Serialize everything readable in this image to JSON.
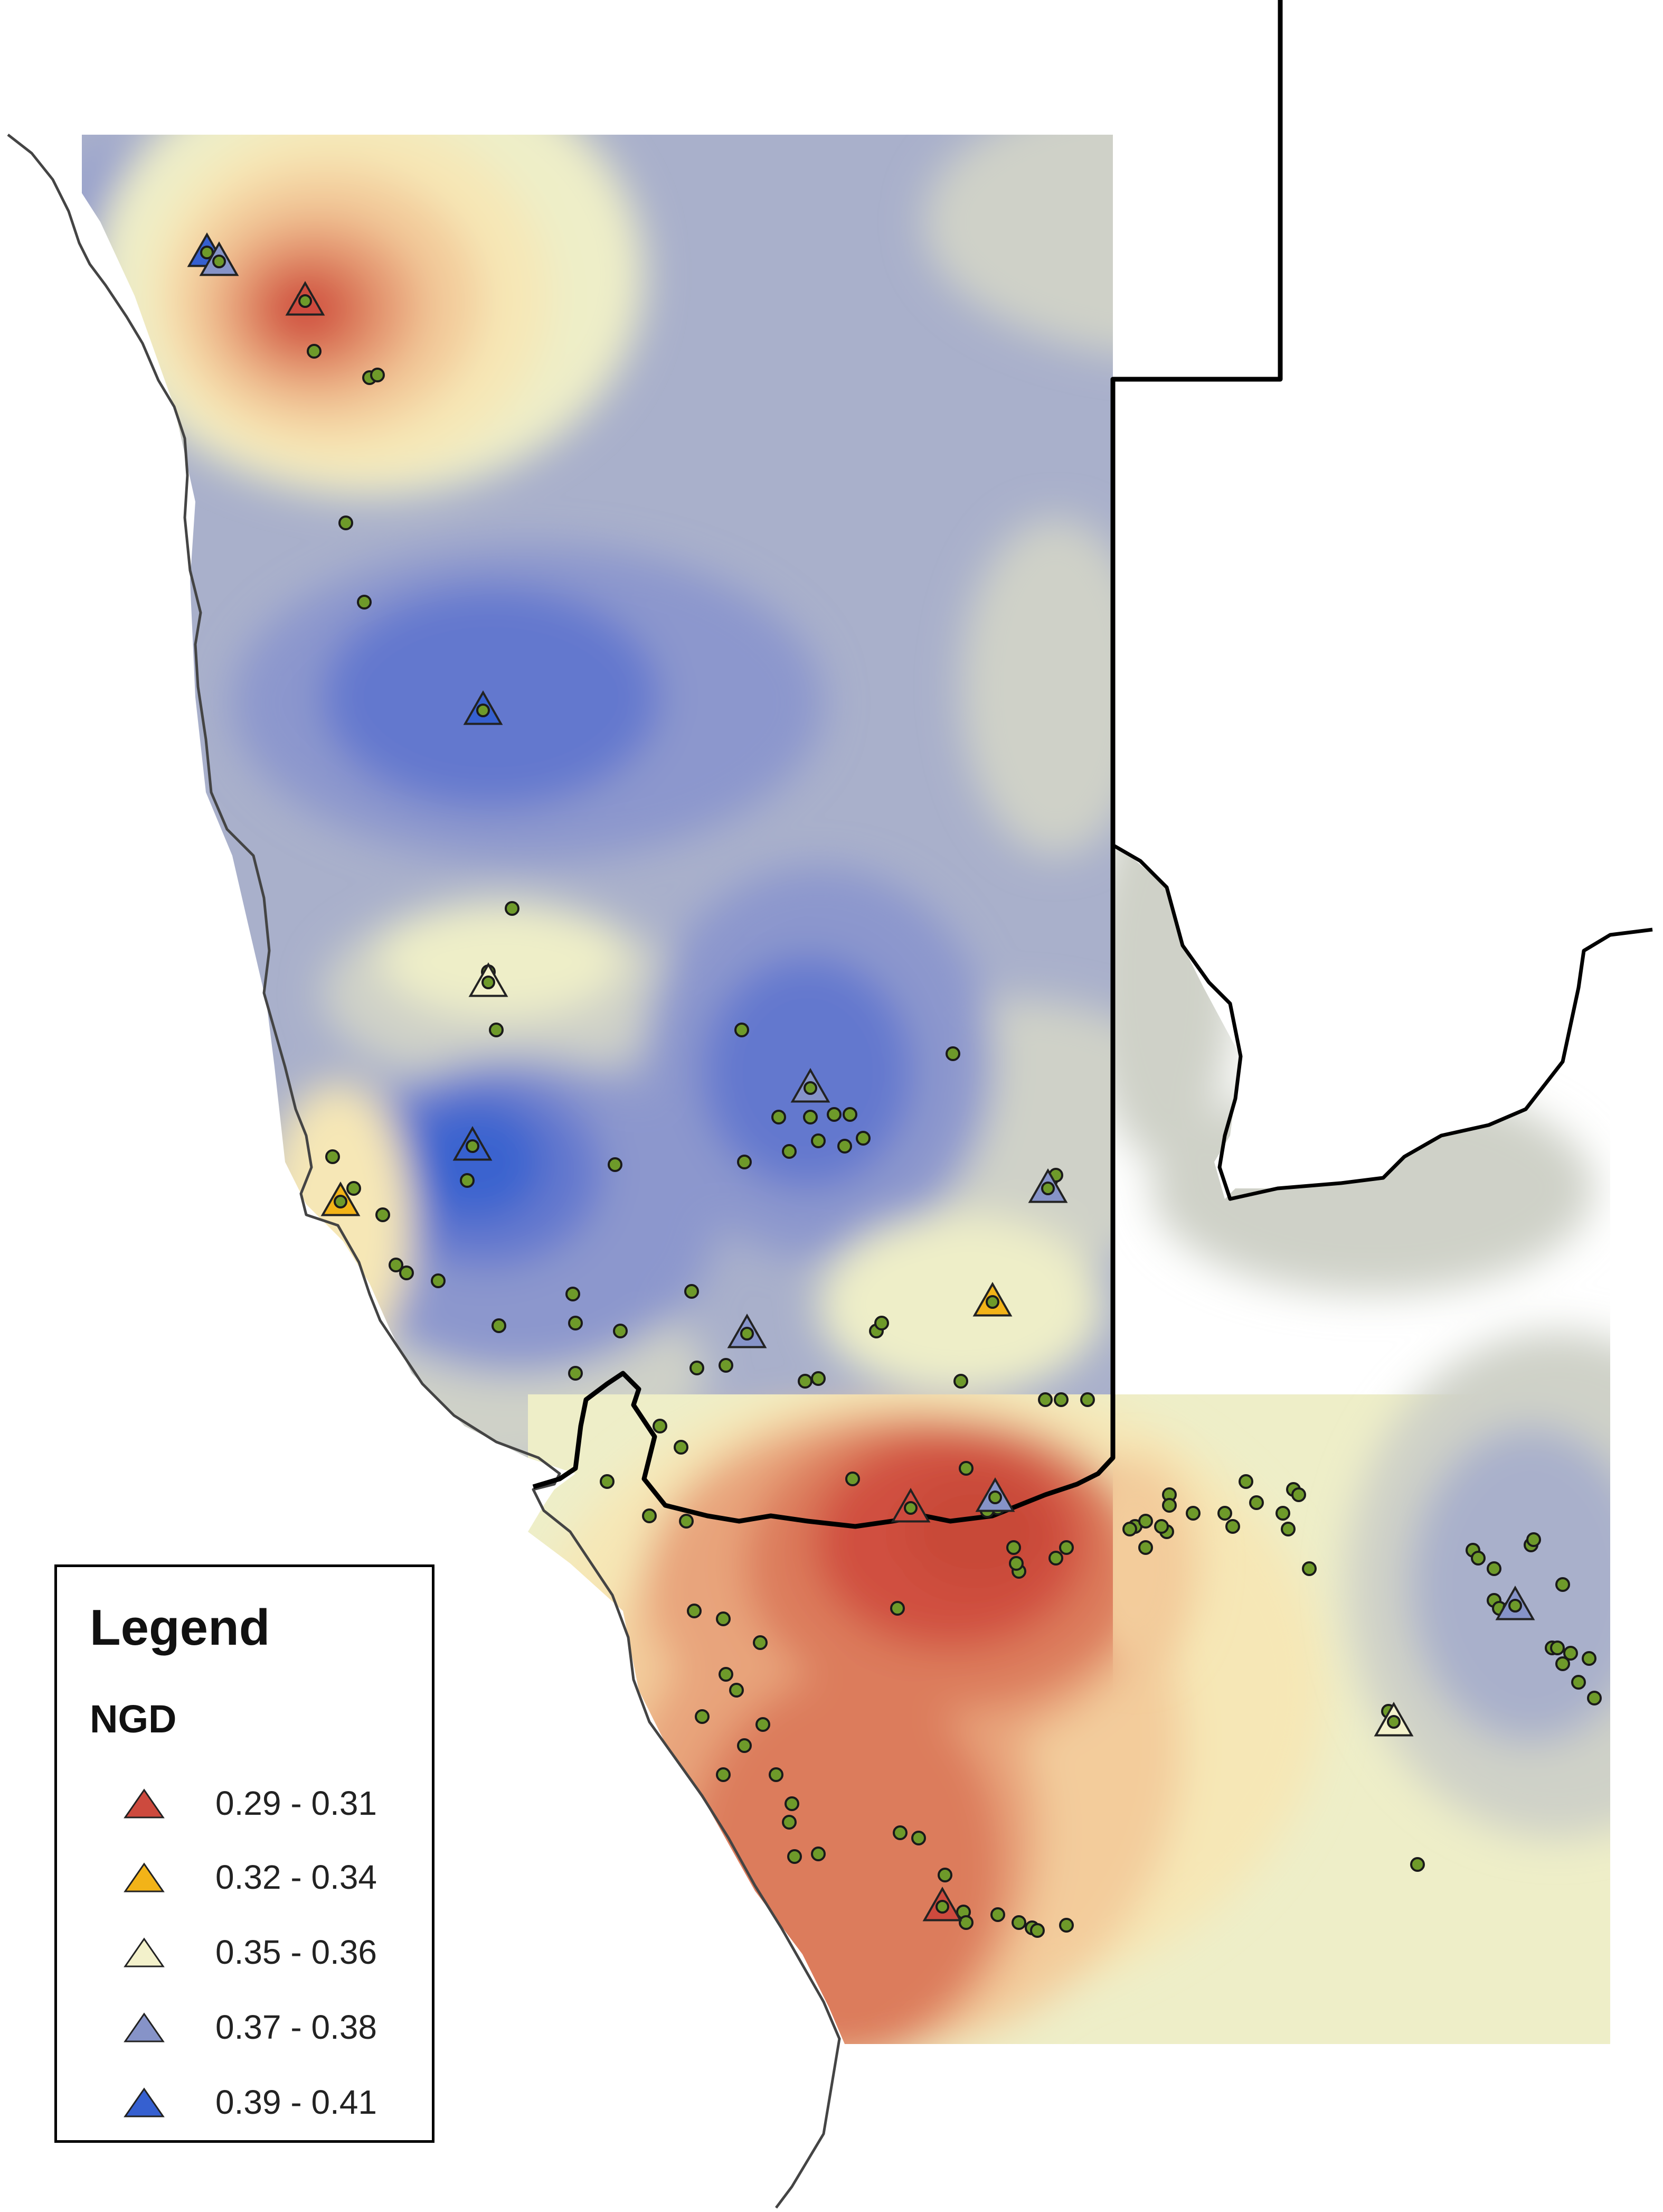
{
  "legend": {
    "title": "Legend",
    "subtitle": "NGD",
    "classes": [
      {
        "label": "0.29 - 0.31",
        "color": "#cd4a3e"
      },
      {
        "label": "0.32 - 0.34",
        "color": "#f2b318"
      },
      {
        "label": "0.35 - 0.36",
        "color": "#f3f1cb"
      },
      {
        "label": "0.37 - 0.38",
        "color": "#8693c8"
      },
      {
        "label": "0.39 - 0.41",
        "color": "#3660d0"
      }
    ]
  },
  "map": {
    "surface_palette": [
      "#d0503f",
      "#dc7b5c",
      "#e8a47b",
      "#f3cc9b",
      "#f6e7b6",
      "#eeeec8",
      "#cfd1c8",
      "#a9b0cb",
      "#8c97cd",
      "#6378ce",
      "#3a63cf"
    ],
    "sample_point_color": "#6e9a2a",
    "outline_color": "#000000"
  }
}
